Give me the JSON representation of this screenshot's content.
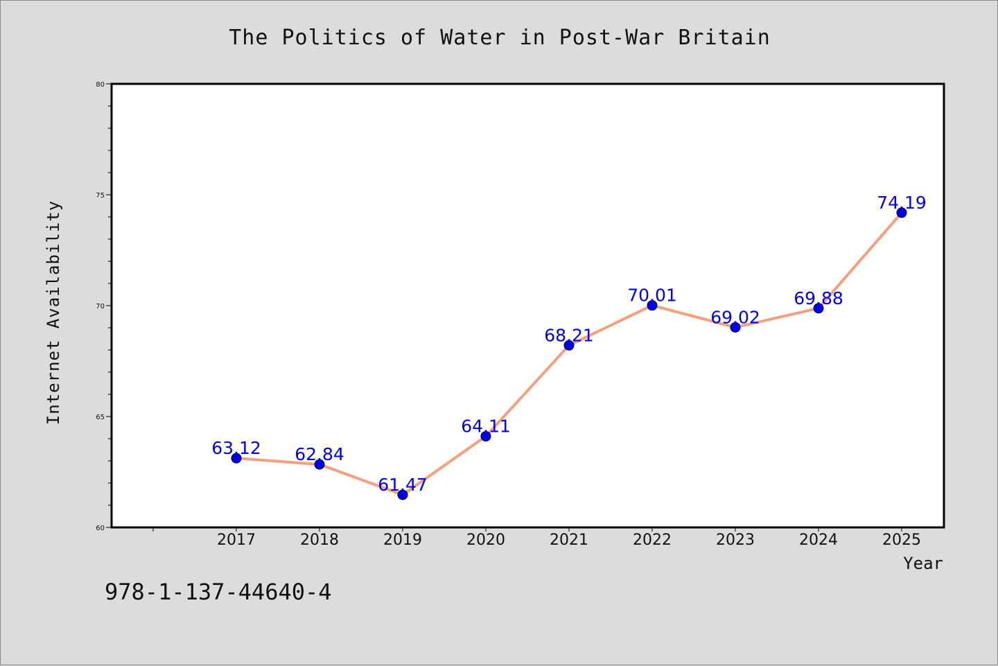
{
  "chart_data": {
    "type": "line",
    "title": "The Politics of Water in Post-War Britain",
    "xlabel": "Year",
    "ylabel": "Internet Availability",
    "categories": [
      "2017",
      "2018",
      "2019",
      "2020",
      "2021",
      "2022",
      "2023",
      "2024",
      "2025"
    ],
    "series": [
      {
        "values": [
          63.12,
          62.84,
          61.47,
          64.11,
          68.21,
          70.01,
          69.02,
          69.88,
          74.19
        ],
        "labels": [
          "63.12",
          "62.84",
          "61.47",
          "64.11",
          "68.21",
          "70.01",
          "69.02",
          "69.88",
          "74.19"
        ]
      }
    ],
    "ylim": [
      60,
      80
    ],
    "yticks": [
      "60",
      "65",
      "70",
      "75",
      "80"
    ],
    "grid": false,
    "legend": "none",
    "colors": {
      "line": "#f4a07e",
      "marker": "#0000ee",
      "data_label": "#0000ee",
      "plot_background": "#ffffff",
      "figure_background": "#dcdcdc"
    }
  },
  "footer": {
    "isbn": "978-1-137-44640-4"
  }
}
